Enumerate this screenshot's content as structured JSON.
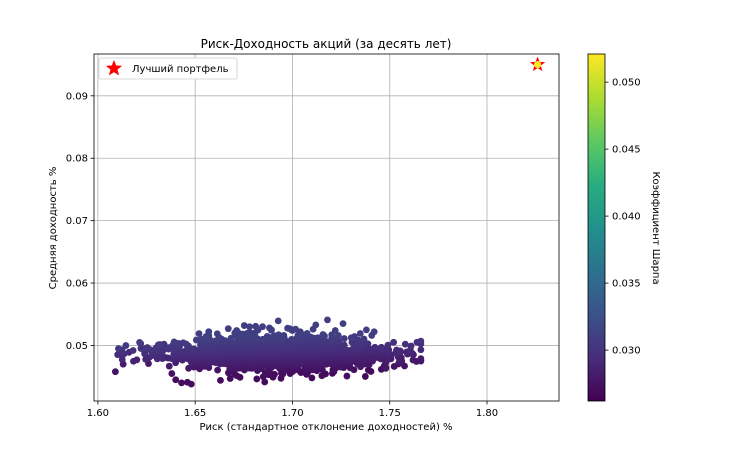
{
  "chart_data": {
    "type": "scatter",
    "title": "Риск-Доходность акций (за десять лет)",
    "xlabel": "Риск (стандартное отклонение доходностей) %",
    "ylabel": "Средняя доходность %",
    "xlim": [
      1.598,
      1.837
    ],
    "ylim": [
      0.0411,
      0.0967
    ],
    "xticks": [
      1.6,
      1.65,
      1.7,
      1.75,
      1.8
    ],
    "xtick_labels": [
      "1.60",
      "1.65",
      "1.70",
      "1.75",
      "1.80"
    ],
    "yticks": [
      0.05,
      0.06,
      0.07,
      0.08,
      0.09
    ],
    "ytick_labels": [
      "0.05",
      "0.06",
      "0.07",
      "0.08",
      "0.09"
    ],
    "grid": true,
    "legend": {
      "placement": "top-left",
      "entries": [
        "Лучший портфель"
      ]
    },
    "colorbar": {
      "label": "Коэффициент Шарпа",
      "colormap": "viridis",
      "range": [
        0.0262,
        0.0521
      ],
      "ticks": [
        0.03,
        0.035,
        0.04,
        0.045,
        0.05
      ],
      "tick_labels": [
        "0.030",
        "0.035",
        "0.040",
        "0.045",
        "0.050"
      ]
    },
    "series": [
      {
        "kind": "portfolios",
        "point_count": 1400,
        "x_range": [
          1.609,
          1.766
        ],
        "y_range": [
          0.0438,
          0.0541
        ],
        "color_range": [
          0.027,
          0.031
        ],
        "sample_points": [
          [
            1.609,
            0.0458
          ],
          [
            1.613,
            0.047
          ],
          [
            1.616,
            0.0489
          ],
          [
            1.62,
            0.0477
          ],
          [
            1.622,
            0.0503
          ],
          [
            1.626,
            0.0471
          ],
          [
            1.63,
            0.0496
          ],
          [
            1.634,
            0.0502
          ],
          [
            1.638,
            0.0455
          ],
          [
            1.64,
            0.0445
          ],
          [
            1.643,
            0.044
          ],
          [
            1.646,
            0.0441
          ],
          [
            1.648,
            0.0438
          ],
          [
            1.652,
            0.0519
          ],
          [
            1.657,
            0.0522
          ],
          [
            1.663,
            0.0444
          ],
          [
            1.668,
            0.0447
          ],
          [
            1.672,
            0.0521
          ],
          [
            1.678,
            0.053
          ],
          [
            1.685,
            0.045
          ],
          [
            1.69,
            0.0449
          ],
          [
            1.7,
            0.0524
          ],
          [
            1.704,
            0.0522
          ],
          [
            1.71,
            0.0448
          ],
          [
            1.712,
            0.0533
          ],
          [
            1.718,
            0.0541
          ],
          [
            1.722,
            0.0524
          ],
          [
            1.726,
            0.0535
          ],
          [
            1.728,
            0.0451
          ],
          [
            1.735,
            0.0466
          ],
          [
            1.738,
            0.0525
          ],
          [
            1.742,
            0.0522
          ],
          [
            1.746,
            0.0487
          ],
          [
            1.748,
            0.0465
          ],
          [
            1.752,
            0.0505
          ],
          [
            1.755,
            0.0475
          ],
          [
            1.758,
            0.0502
          ],
          [
            1.76,
            0.0487
          ],
          [
            1.764,
            0.0505
          ],
          [
            1.766,
            0.0507
          ]
        ]
      },
      {
        "kind": "best",
        "name": "Лучший портфель",
        "x": 1.826,
        "y": 0.095,
        "sharpe": 0.052,
        "marker": "star",
        "color": "#ff0000"
      }
    ]
  }
}
